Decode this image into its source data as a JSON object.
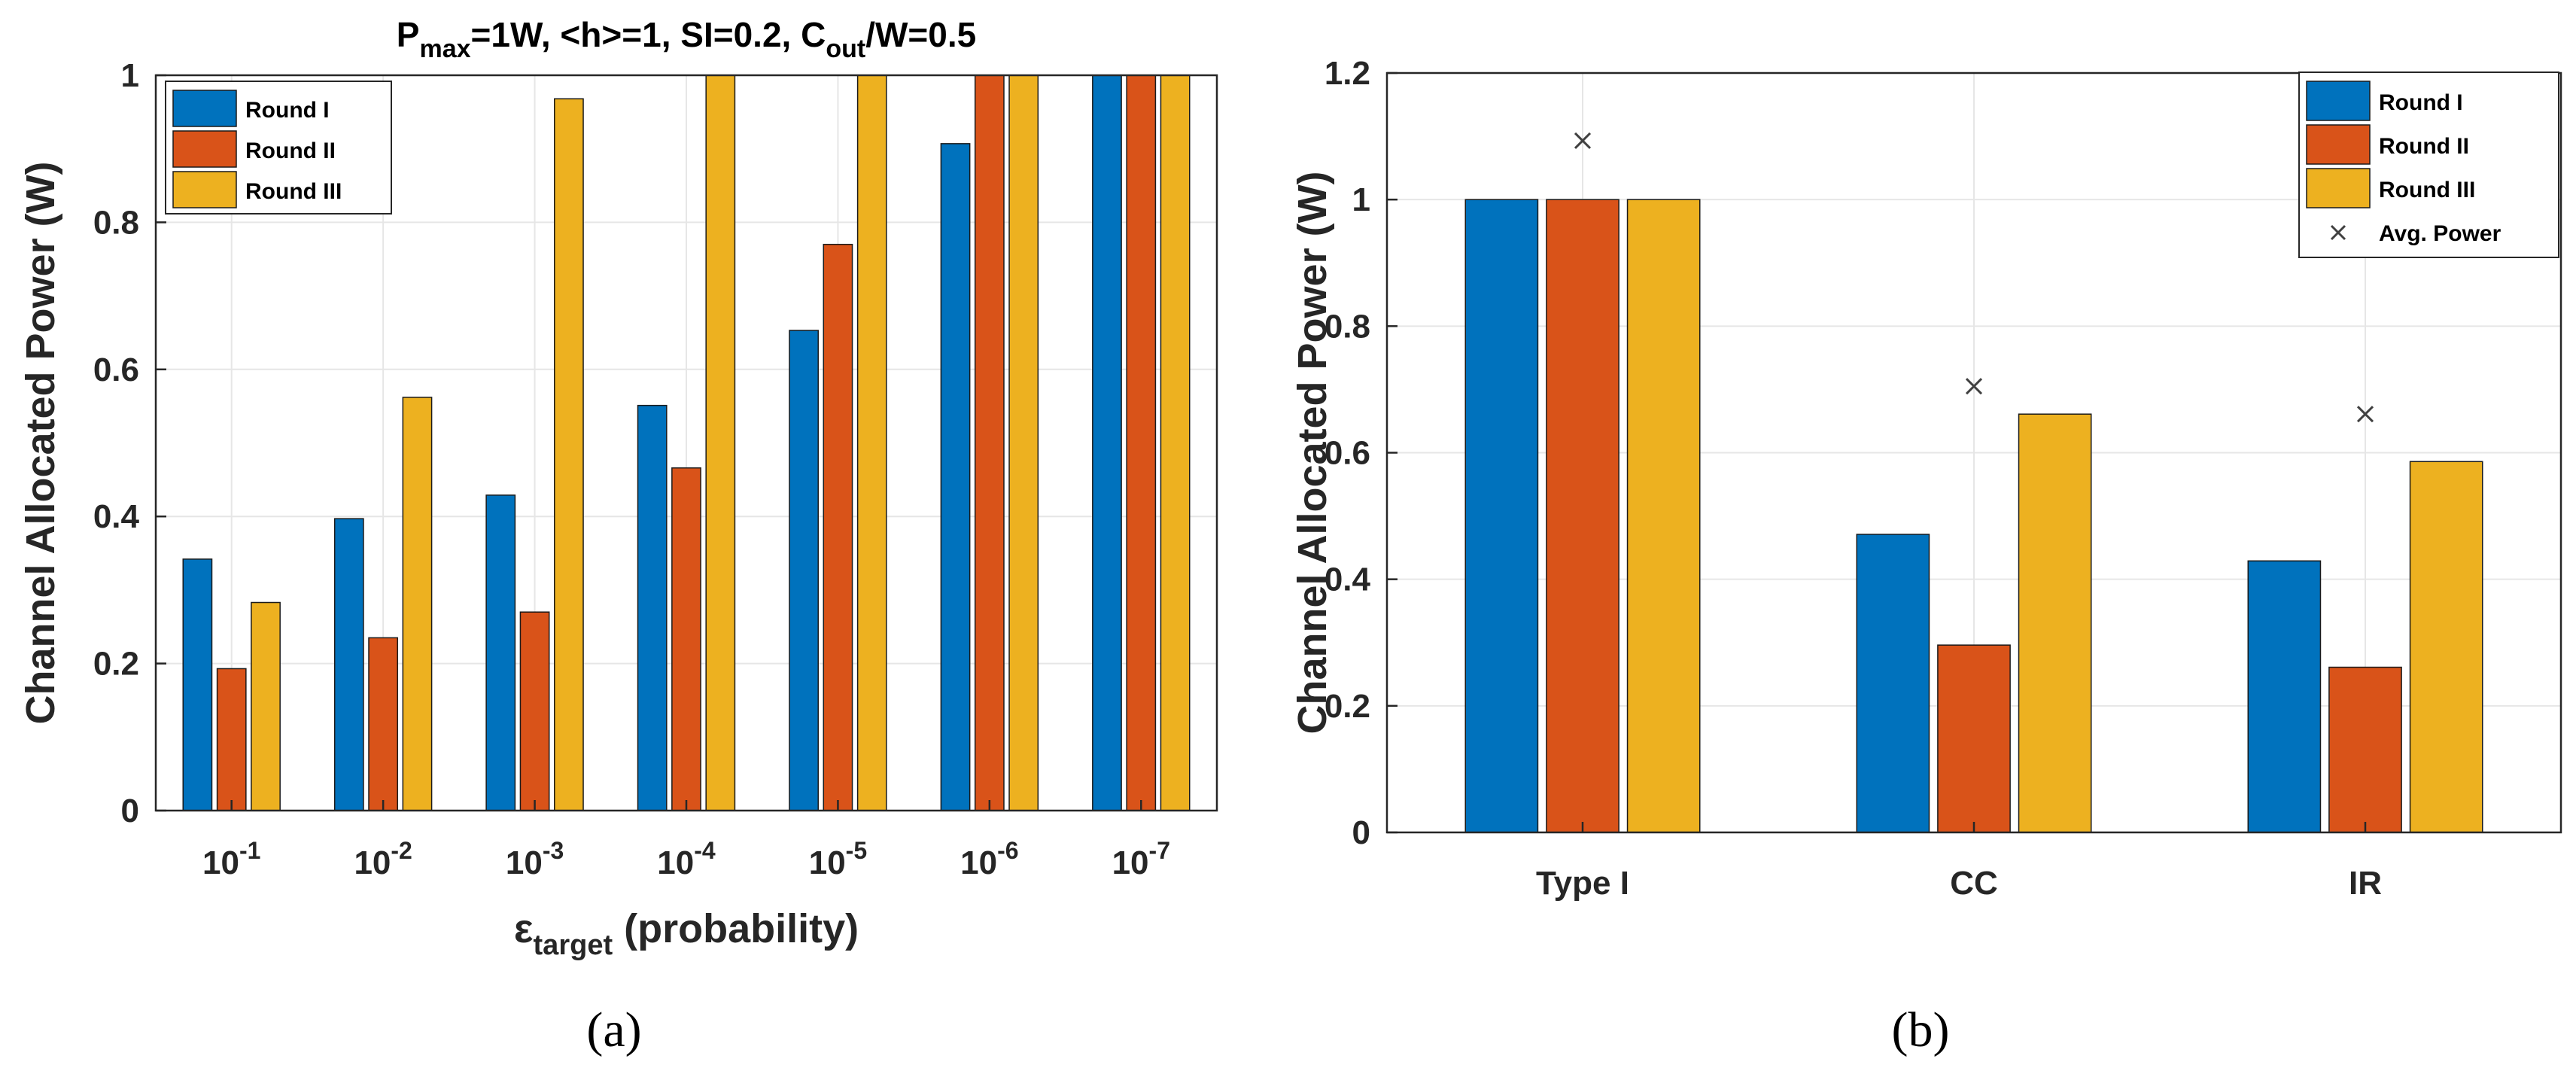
{
  "colors": {
    "round_1": "#0072BD",
    "round_2": "#D95319",
    "round_3": "#EDB120",
    "marker": "#404040",
    "grid": "#e6e6e6",
    "axis": "#262626"
  },
  "chart_data": [
    {
      "type": "bar",
      "panel_caption": "(a)",
      "title": {
        "parts": [
          {
            "text": "P",
            "shift": "base"
          },
          {
            "text": "max",
            "shift": "sub"
          },
          {
            "text": "=1W, <h>=1, SI=0.2, C",
            "shift": "base"
          },
          {
            "text": "out",
            "shift": "sub"
          },
          {
            "text": "/W=0.5",
            "shift": "base"
          }
        ]
      },
      "ylabel": "Channel Allocated Power (W)",
      "xlabel": {
        "parts": [
          {
            "text": "ε",
            "shift": "base"
          },
          {
            "text": "target",
            "shift": "sub"
          },
          {
            "text": " (probability)",
            "shift": "base"
          }
        ]
      },
      "categories": [
        {
          "base": "10",
          "exp": "-1"
        },
        {
          "base": "10",
          "exp": "-2"
        },
        {
          "base": "10",
          "exp": "-3"
        },
        {
          "base": "10",
          "exp": "-4"
        },
        {
          "base": "10",
          "exp": "-5"
        },
        {
          "base": "10",
          "exp": "-6"
        },
        {
          "base": "10",
          "exp": "-7"
        }
      ],
      "series": [
        {
          "name": "Round I",
          "values": [
            0.342,
            0.397,
            0.429,
            0.551,
            0.653,
            0.907,
            1.0
          ]
        },
        {
          "name": "Round II",
          "values": [
            0.193,
            0.235,
            0.27,
            0.466,
            0.77,
            1.0,
            1.0
          ]
        },
        {
          "name": "Round III",
          "values": [
            0.283,
            0.562,
            0.968,
            1.0,
            1.0,
            1.0,
            1.0
          ]
        }
      ],
      "ylim": [
        0,
        1
      ],
      "yticks": [
        "0",
        "0.2",
        "0.4",
        "0.6",
        "0.8",
        "1"
      ],
      "grid": true,
      "legend": "top-left"
    },
    {
      "type": "bar",
      "panel_caption": "(b)",
      "ylabel": "Channel Allocated Power (W)",
      "categories": [
        "Type I",
        "CC",
        "IR"
      ],
      "series": [
        {
          "name": "Round I",
          "values": [
            1.0,
            0.471,
            0.429
          ]
        },
        {
          "name": "Round II",
          "values": [
            1.0,
            0.296,
            0.261
          ]
        },
        {
          "name": "Round III",
          "values": [
            1.0,
            0.661,
            0.586
          ]
        }
      ],
      "markers": {
        "name": "Avg. Power",
        "symbol": "×",
        "values": [
          1.093,
          0.705,
          0.661
        ]
      },
      "ylim": [
        0,
        1.2
      ],
      "yticks": [
        "0",
        "0.2",
        "0.4",
        "0.6",
        "0.8",
        "1",
        "1.2"
      ],
      "grid": true,
      "legend": "top-right"
    }
  ]
}
